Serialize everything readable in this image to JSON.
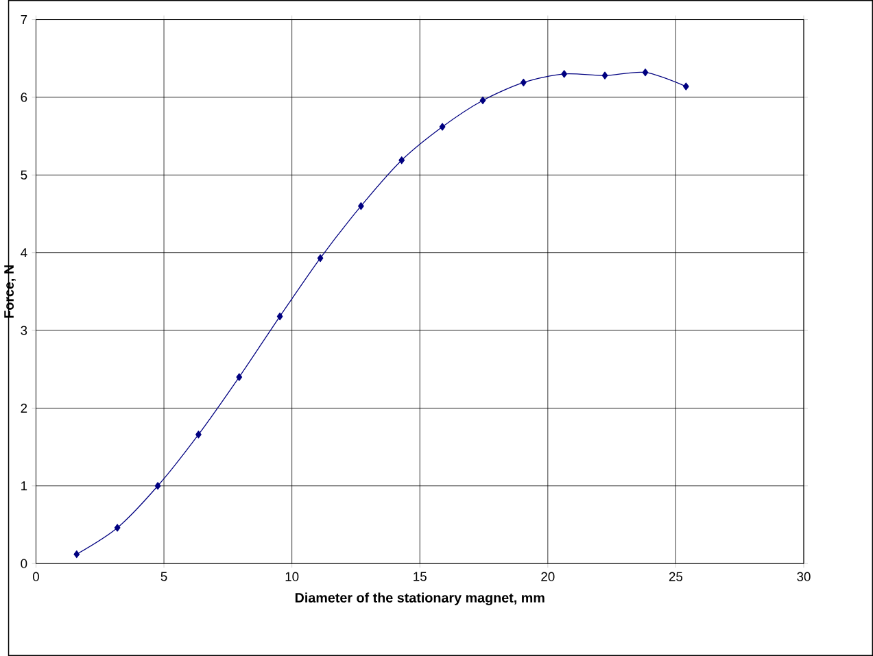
{
  "chart_data": {
    "type": "line",
    "xlabel": "Diameter of the stationary magnet, mm",
    "ylabel": "Force, N",
    "x": [
      1.59,
      3.18,
      4.76,
      6.35,
      7.94,
      9.53,
      11.11,
      12.7,
      14.29,
      15.88,
      17.46,
      19.05,
      20.64,
      22.23,
      23.81,
      25.4
    ],
    "values": [
      0.12,
      0.46,
      1.0,
      1.66,
      2.4,
      3.18,
      3.93,
      4.6,
      5.19,
      5.62,
      5.96,
      6.19,
      6.3,
      6.28,
      6.32,
      6.14
    ],
    "color": "#000080",
    "marker": "diamond",
    "grid": true,
    "xlim": [
      0,
      30
    ],
    "ylim": [
      0,
      7
    ],
    "xticks": [
      0,
      5,
      10,
      15,
      20,
      25,
      30
    ],
    "yticks": [
      0,
      1,
      2,
      3,
      4,
      5,
      6,
      7
    ]
  }
}
